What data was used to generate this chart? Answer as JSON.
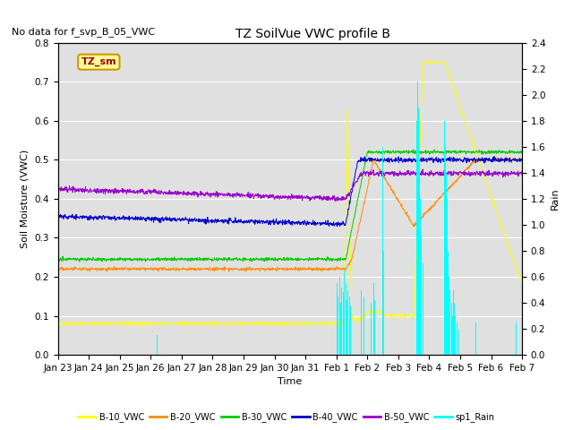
{
  "title": "TZ SoilVue VWC profile B",
  "subtitle": "No data for f_svp_B_05_VWC",
  "xlabel": "Time",
  "ylabel_left": "Soil Moisture (VWC)",
  "ylabel_right": "Rain",
  "ylim_left": [
    0.0,
    0.8
  ],
  "ylim_right": [
    0.0,
    2.4
  ],
  "yticks_left": [
    0.0,
    0.1,
    0.2,
    0.3,
    0.4,
    0.5,
    0.6,
    0.7,
    0.8
  ],
  "yticks_right": [
    0.0,
    0.2,
    0.4,
    0.6,
    0.8,
    1.0,
    1.2,
    1.4,
    1.6,
    1.8,
    2.0,
    2.2,
    2.4
  ],
  "xtick_labels": [
    "Jan 23",
    "Jan 24",
    "Jan 25",
    "Jan 26",
    "Jan 27",
    "Jan 28",
    "Jan 29",
    "Jan 30",
    "Jan 31",
    "Feb 1",
    "Feb 2",
    "Feb 3",
    "Feb 4",
    "Feb 5",
    "Feb 6",
    "Feb 7"
  ],
  "colors": {
    "B10": "#ffff00",
    "B20": "#ff8c00",
    "B30": "#00cc00",
    "B40": "#0000cc",
    "B50": "#9900cc",
    "rain": "#00ffff",
    "TZ_sm_box": "#ffff99",
    "TZ_sm_border": "#cc9900",
    "TZ_sm_text": "#990000"
  },
  "legend_labels": [
    "B-10_VWC",
    "B-20_VWC",
    "B-30_VWC",
    "B-40_VWC",
    "B-50_VWC",
    "sp1_Rain"
  ],
  "background_color": "#e0e0e0",
  "grid_color": "#ffffff",
  "fig_color": "#ffffff"
}
